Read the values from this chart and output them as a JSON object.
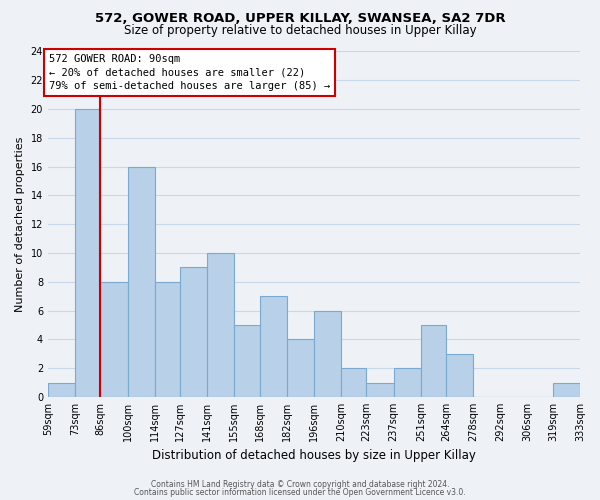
{
  "title": "572, GOWER ROAD, UPPER KILLAY, SWANSEA, SA2 7DR",
  "subtitle": "Size of property relative to detached houses in Upper Killay",
  "xlabel": "Distribution of detached houses by size in Upper Killay",
  "ylabel": "Number of detached properties",
  "bin_edges": [
    59,
    73,
    86,
    100,
    114,
    127,
    141,
    155,
    168,
    182,
    196,
    210,
    223,
    237,
    251,
    264,
    278,
    292,
    306,
    319,
    333
  ],
  "bin_labels": [
    "59sqm",
    "73sqm",
    "86sqm",
    "100sqm",
    "114sqm",
    "127sqm",
    "141sqm",
    "155sqm",
    "168sqm",
    "182sqm",
    "196sqm",
    "210sqm",
    "223sqm",
    "237sqm",
    "251sqm",
    "264sqm",
    "278sqm",
    "292sqm",
    "306sqm",
    "319sqm",
    "333sqm"
  ],
  "counts": [
    1,
    20,
    8,
    16,
    8,
    9,
    10,
    5,
    7,
    4,
    6,
    2,
    1,
    2,
    5,
    3,
    0,
    0,
    0,
    1
  ],
  "bar_color": "#b8d0e8",
  "bar_edge_color": "#7aaacf",
  "grid_color": "#c8d8e8",
  "property_line_x": 86,
  "property_line_color": "#cc0000",
  "annotation_title": "572 GOWER ROAD: 90sqm",
  "annotation_line1": "← 20% of detached houses are smaller (22)",
  "annotation_line2": "79% of semi-detached houses are larger (85) →",
  "annotation_box_color": "#ffffff",
  "annotation_box_edge": "#cc0000",
  "footer1": "Contains HM Land Registry data © Crown copyright and database right 2024.",
  "footer2": "Contains public sector information licensed under the Open Government Licence v3.0.",
  "ylim": [
    0,
    24
  ],
  "yticks": [
    0,
    2,
    4,
    6,
    8,
    10,
    12,
    14,
    16,
    18,
    20,
    22,
    24
  ],
  "background_color": "#eef2f7"
}
